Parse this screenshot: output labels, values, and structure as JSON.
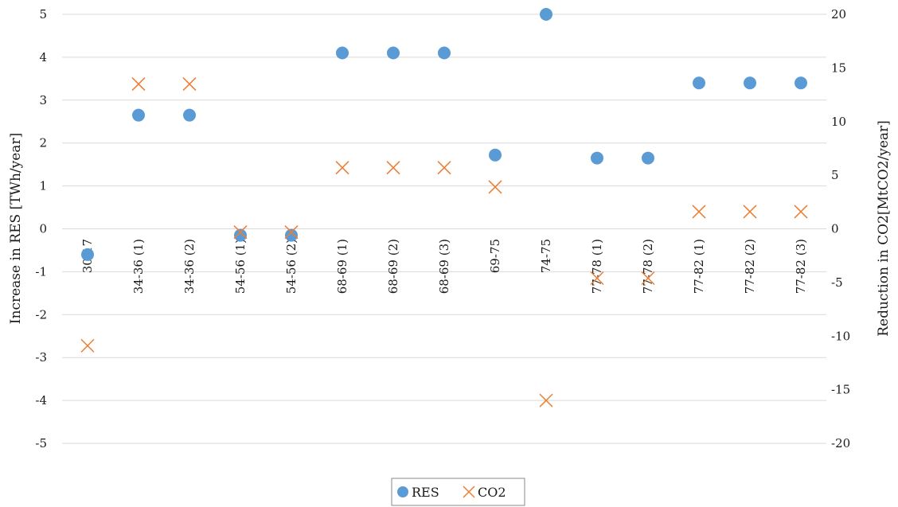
{
  "chart_data": {
    "type": "scatter",
    "title": "",
    "categories": [
      "30-17",
      "34-36 (1)",
      "34-36 (2)",
      "54-56 (1)",
      "54-56 (2)",
      "68-69 (1)",
      "68-69 (2)",
      "68-69 (3)",
      "69-75",
      "74-75",
      "77-78 (1)",
      "77-78 (2)",
      "77-82 (1)",
      "77-82 (2)",
      "77-82 (3)"
    ],
    "ylabel_left": "Increase in RES [TWh/year]",
    "ylabel_right": "Reduction in CO2[MtCO2/year]",
    "ylim_left": [
      -5,
      5
    ],
    "ylim_right": [
      -20,
      20
    ],
    "yticks_left": [
      "5",
      "4",
      "3",
      "2",
      "1",
      "0",
      "-1",
      "-2",
      "-3",
      "-4",
      "-5"
    ],
    "yticks_right": [
      "20",
      "15",
      "10",
      "5",
      "0",
      "-5",
      "-10",
      "-15",
      "-20"
    ],
    "grid": true,
    "legend_position": "bottom",
    "series": [
      {
        "name": "RES",
        "axis": "left",
        "marker": "circle",
        "color": "#5B9BD5",
        "values": [
          -0.6,
          2.65,
          2.65,
          -0.15,
          -0.15,
          4.1,
          4.1,
          4.1,
          1.72,
          5.0,
          1.65,
          1.65,
          3.4,
          3.4,
          3.4
        ]
      },
      {
        "name": "CO2",
        "axis": "right",
        "marker": "x",
        "color": "#ED7D31",
        "values": [
          -10.9,
          13.5,
          13.5,
          -0.3,
          -0.3,
          5.7,
          5.7,
          5.7,
          3.9,
          -16.0,
          -4.6,
          -4.6,
          1.6,
          1.6,
          1.6
        ]
      }
    ]
  }
}
